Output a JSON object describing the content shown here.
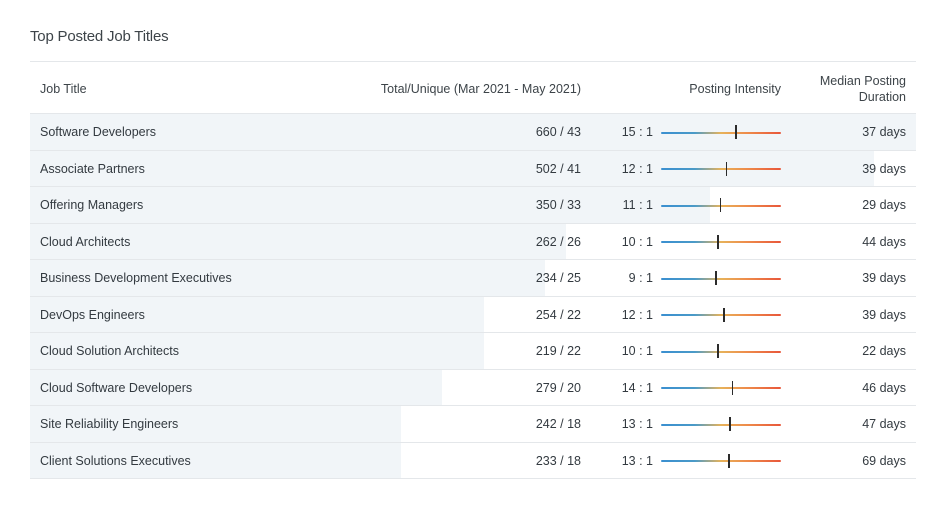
{
  "title": "Top Posted Job Titles",
  "headers": {
    "job_title": "Job Title",
    "total_unique": "Total/Unique (Mar 2021 - May 2021)",
    "posting_intensity": "Posting Intensity",
    "median_duration_line1": "Median Posting",
    "median_duration_line2": "Duration"
  },
  "rows": [
    {
      "title": "Software Developers",
      "total_unique": "660 / 43",
      "ratio": "15 : 1",
      "duration": "37 days",
      "share": 1.0,
      "intensity": 0.62
    },
    {
      "title": "Associate Partners",
      "total_unique": "502 / 41",
      "ratio": "12 : 1",
      "duration": "39 days",
      "share": 0.953,
      "intensity": 0.54
    },
    {
      "title": "Offering Managers",
      "total_unique": "350 / 33",
      "ratio": "11 : 1",
      "duration": "29 days",
      "share": 0.767,
      "intensity": 0.49
    },
    {
      "title": "Cloud Architects",
      "total_unique": "262 / 26",
      "ratio": "10 : 1",
      "duration": "44 days",
      "share": 0.605,
      "intensity": 0.47
    },
    {
      "title": "Business Development Executives",
      "total_unique": "234 / 25",
      "ratio": "9 : 1",
      "duration": "39 days",
      "share": 0.581,
      "intensity": 0.45
    },
    {
      "title": "DevOps Engineers",
      "total_unique": "254 / 22",
      "ratio": "12 : 1",
      "duration": "39 days",
      "share": 0.512,
      "intensity": 0.52
    },
    {
      "title": "Cloud Solution Architects",
      "total_unique": "219 / 22",
      "ratio": "10 : 1",
      "duration": "22 days",
      "share": 0.512,
      "intensity": 0.47
    },
    {
      "title": "Cloud Software Developers",
      "total_unique": "279 / 20",
      "ratio": "14 : 1",
      "duration": "46 days",
      "share": 0.465,
      "intensity": 0.59
    },
    {
      "title": "Site Reliability Engineers",
      "total_unique": "242 / 18",
      "ratio": "13 : 1",
      "duration": "47 days",
      "share": 0.419,
      "intensity": 0.57
    },
    {
      "title": "Client Solutions Executives",
      "total_unique": "233 / 18",
      "ratio": "13 : 1",
      "duration": "69 days",
      "share": 0.419,
      "intensity": 0.56
    }
  ]
}
